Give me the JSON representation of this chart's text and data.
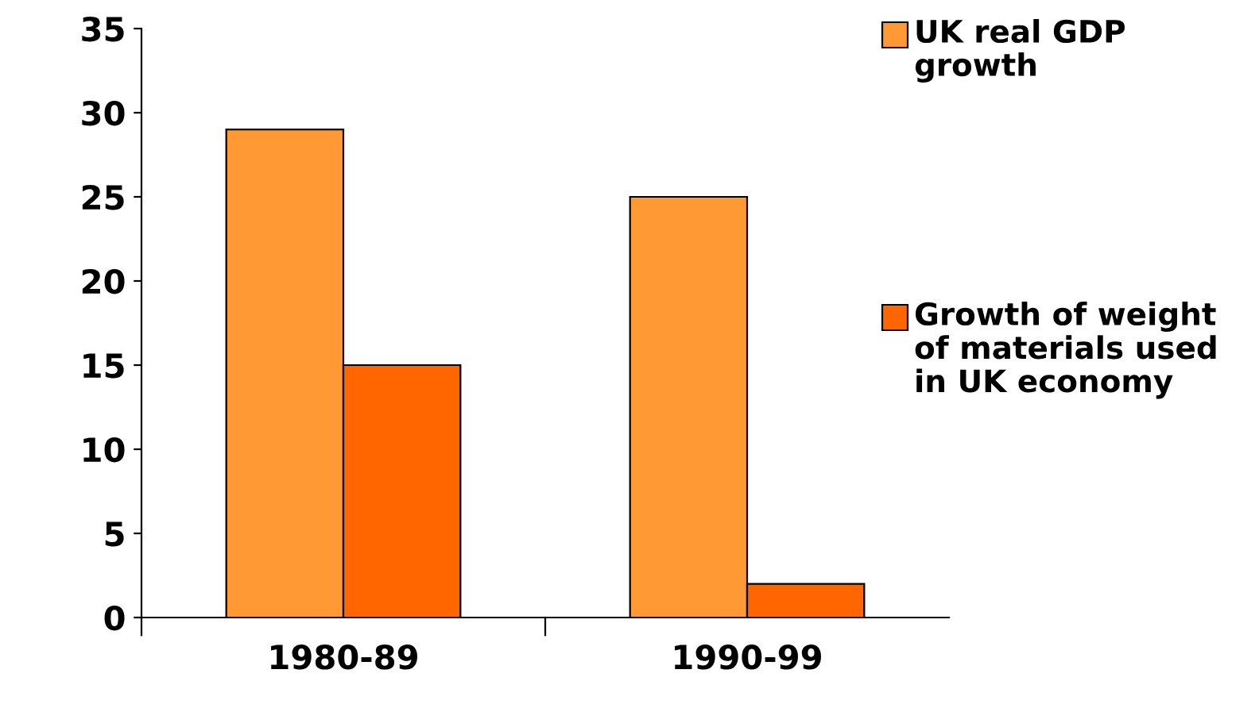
{
  "chart_data": {
    "type": "bar",
    "categories": [
      "1980-89",
      "1990-99"
    ],
    "series": [
      {
        "name": "UK real GDP growth",
        "color": "#ff9933",
        "values": [
          29,
          25
        ]
      },
      {
        "name": "Growth of weight of materials used in UK economy",
        "color": "#ff6600",
        "values": [
          15,
          2
        ]
      }
    ],
    "ylim": [
      0,
      35
    ],
    "yticks": [
      0,
      5,
      10,
      15,
      20,
      25,
      30,
      35
    ],
    "grid": false,
    "legend": "right"
  }
}
